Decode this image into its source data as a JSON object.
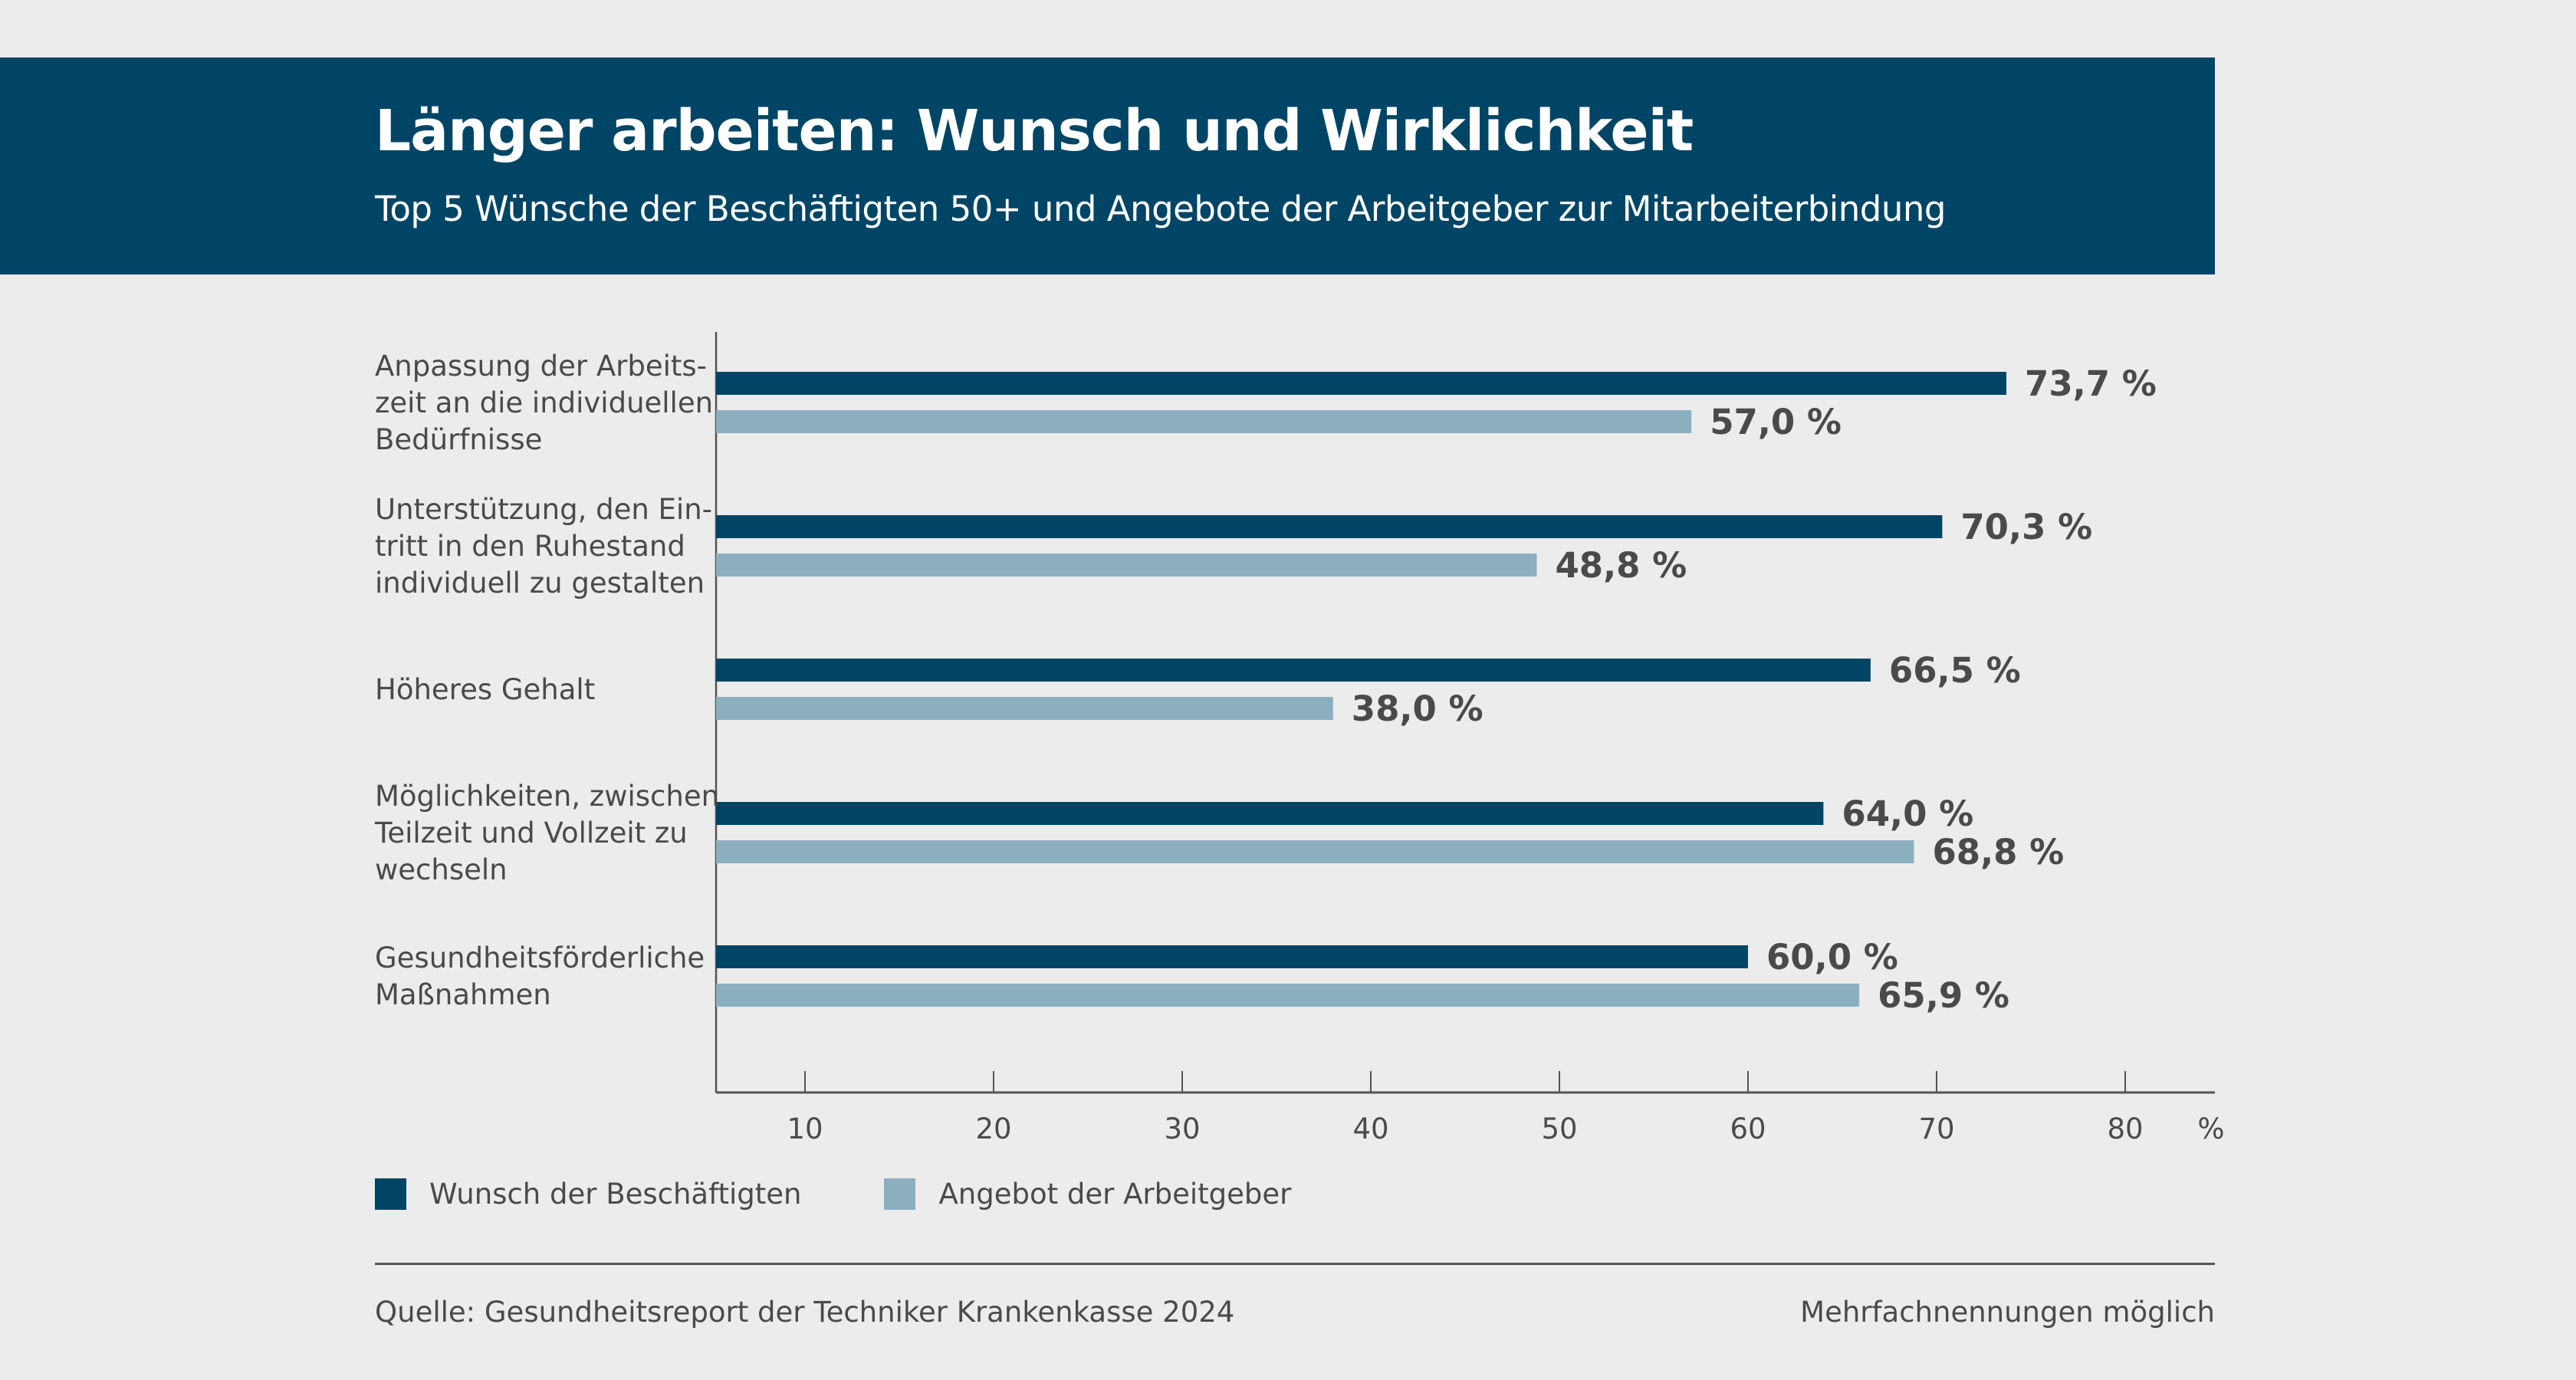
{
  "header": {
    "title": "Länger arbeiten: Wunsch und Wirklichkeit",
    "subtitle": "Top 5 Wünsche der Beschäftigten 50+ und Angebote der Arbeitgeber zur Mitarbeiterbindung"
  },
  "colors": {
    "header_bg": "#004565",
    "series_dark": "#004565",
    "series_light": "#8cafc0",
    "text": "#4a4a4a",
    "background": "#ececec"
  },
  "chart_data": {
    "type": "bar",
    "orientation": "horizontal",
    "title": "Länger arbeiten: Wunsch und Wirklichkeit",
    "subtitle": "Top 5 Wünsche der Beschäftigten 50+ und Angebote der Arbeitgeber zur Mitarbeiterbindung",
    "categories": [
      [
        "Anpassung der Arbeits-",
        "zeit an die individuellen",
        "Bedürfnisse"
      ],
      [
        "Unterstützung, den Ein-",
        "tritt in den Ruhestand",
        "individuell zu gestalten"
      ],
      [
        "Höheres Gehalt"
      ],
      [
        "Möglichkeiten, zwischen",
        "Teilzeit und Vollzeit zu",
        "wechseln"
      ],
      [
        "Gesundheitsförderliche",
        "Maßnahmen"
      ]
    ],
    "series": [
      {
        "name": "Wunsch der Beschäftigten",
        "color": "#004565",
        "values": [
          73.7,
          70.3,
          66.5,
          64.0,
          60.0
        ],
        "labels": [
          "73,7 %",
          "70,3 %",
          "66,5 %",
          "64,0 %",
          "60,0 %"
        ]
      },
      {
        "name": "Angebot der Arbeitgeber",
        "color": "#8cafc0",
        "values": [
          57.0,
          48.8,
          38.0,
          68.8,
          65.9
        ],
        "labels": [
          "57,0 %",
          "48,8 %",
          "38,0 %",
          "68,8 %",
          "65,9 %"
        ]
      }
    ],
    "xlabel": "",
    "x_unit": "%",
    "xticks": [
      10,
      20,
      30,
      40,
      50,
      60,
      70,
      80
    ],
    "xtick_labels": [
      "10",
      "20",
      "30",
      "40",
      "50",
      "60",
      "70",
      "80"
    ],
    "xlim": [
      5.3,
      84.5
    ],
    "grid": false,
    "legend_position": "bottom-left"
  },
  "legend": [
    {
      "label": "Wunsch der Beschäftigten",
      "color": "#004565"
    },
    {
      "label": "Angebot der Arbeitgeber",
      "color": "#8cafc0"
    }
  ],
  "footer": {
    "source": "Quelle: Gesundheitsreport der Techniker Krankenkasse 2024",
    "note": "Mehrfachnennungen möglich"
  }
}
